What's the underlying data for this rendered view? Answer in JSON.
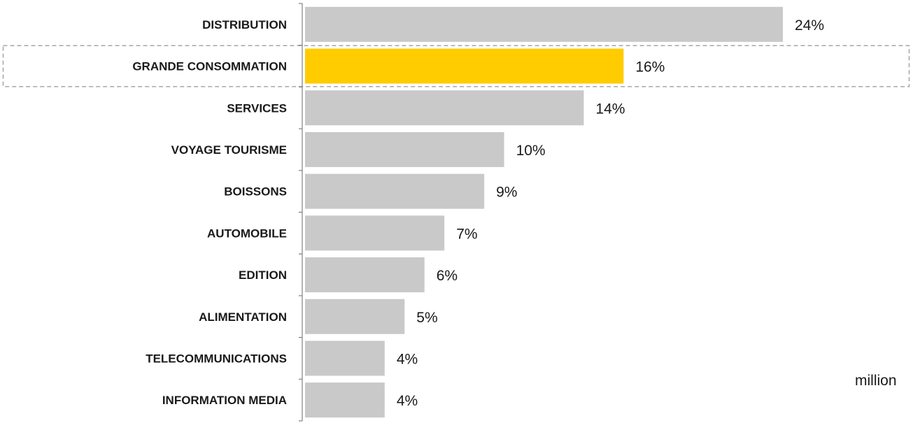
{
  "chart_data": {
    "type": "bar",
    "orientation": "horizontal",
    "categories": [
      "DISTRIBUTION",
      "GRANDE CONSOMMATION",
      "SERVICES",
      "VOYAGE TOURISME",
      "BOISSONS",
      "AUTOMOBILE",
      "EDITION",
      "ALIMENTATION",
      "TELECOMMUNICATIONS",
      "INFORMATION MEDIA"
    ],
    "values": [
      24,
      16,
      14,
      10,
      9,
      7,
      6,
      5,
      4,
      4
    ],
    "value_labels": [
      "24%",
      "16%",
      "14%",
      "10%",
      "9%",
      "7%",
      "6%",
      "5%",
      "4%",
      "4%"
    ],
    "highlighted": "GRANDE CONSOMMATION",
    "colors": {
      "default_bar": "#c9c9c9",
      "highlight_bar": "#ffcc00",
      "axis": "#808080",
      "highlight_outline": "#a6a6a6"
    },
    "xlim": [
      0,
      25
    ],
    "title": "",
    "xlabel": "",
    "ylabel": "",
    "grid": false,
    "legend": "none"
  },
  "stray_text": "million"
}
